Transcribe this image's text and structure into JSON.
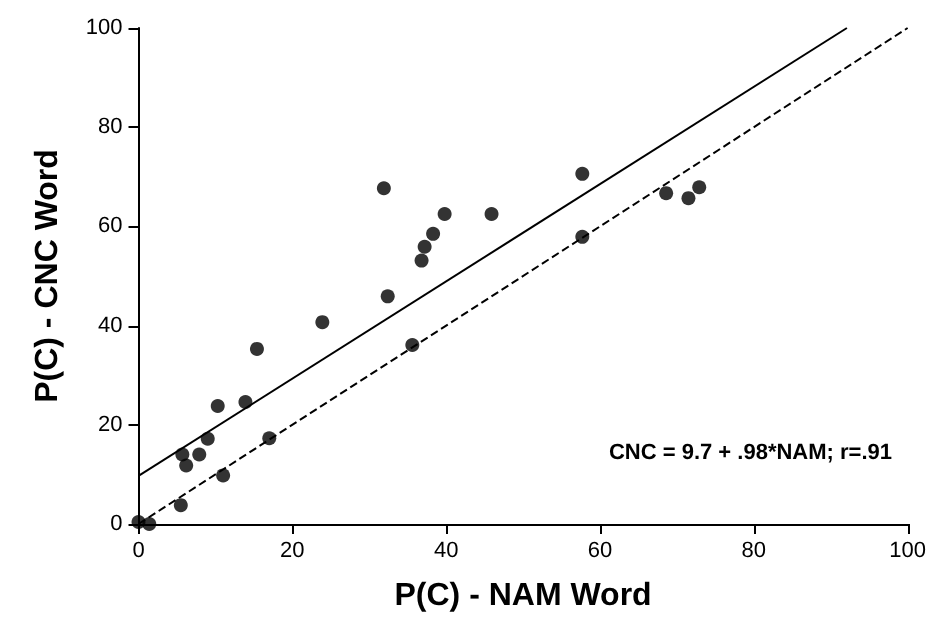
{
  "chart_data": {
    "type": "scatter",
    "xlabel": "P(C) - NAM Word",
    "ylabel": "P(C) - CNC Word",
    "xlim": [
      0,
      100
    ],
    "ylim": [
      0,
      100
    ],
    "xticks": [
      0,
      20,
      40,
      60,
      80,
      100
    ],
    "yticks": [
      0,
      20,
      40,
      60,
      80,
      100
    ],
    "grid": false,
    "annotations": [
      "CNC = 9.7 + .98*NAM; r=.91"
    ],
    "series": [
      {
        "color": "#000000",
        "marker": "circle",
        "x": [
          0,
          1.4,
          5.5,
          5.7,
          6.2,
          7.9,
          9,
          10.3,
          11,
          13.9,
          15.4,
          17,
          23.9,
          31.9,
          32.4,
          35.6,
          36.8,
          37.2,
          38.3,
          39.8,
          45.9,
          57.7,
          57.7,
          68.6,
          71.5,
          72.9
        ],
        "values": [
          0.4,
          0,
          3.8,
          14,
          11.8,
          14,
          17.2,
          23.8,
          9.8,
          24.6,
          35.3,
          17.3,
          40.7,
          67.7,
          45.9,
          36.1,
          53.1,
          55.9,
          58.5,
          62.5,
          62.5,
          70.6,
          57.9,
          66.7,
          65.7,
          67.9
        ]
      },
      {
        "type": "line",
        "color": "#000000",
        "marker": "none",
        "line_style": "solid",
        "x": [
          0,
          92.1
        ],
        "values": [
          9.7,
          100
        ]
      },
      {
        "type": "line",
        "color": "#000000",
        "marker": "none",
        "line_style": "dashed",
        "x": [
          0,
          100
        ],
        "values": [
          0,
          100
        ]
      }
    ]
  }
}
